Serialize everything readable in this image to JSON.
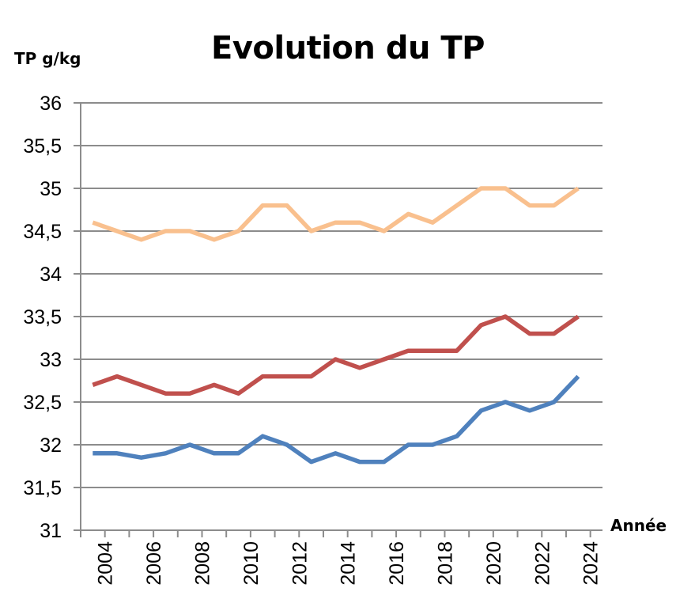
{
  "chart_data": {
    "type": "line",
    "title": "Evolution du TP",
    "ylabel": "TP g/kg",
    "xlabel": "Année",
    "ylim": [
      31,
      36
    ],
    "y_ticks": [
      "31",
      "31,5",
      "32",
      "32,5",
      "33",
      "33,5",
      "34",
      "34,5",
      "35",
      "35,5",
      "36"
    ],
    "x_ticks": [
      "2004",
      "2006",
      "2008",
      "2010",
      "2012",
      "2014",
      "2016",
      "2018",
      "2020",
      "2022",
      "2024"
    ],
    "x": [
      2003,
      2004,
      2005,
      2006,
      2007,
      2008,
      2009,
      2010,
      2011,
      2012,
      2013,
      2014,
      2015,
      2016,
      2017,
      2018,
      2019,
      2020,
      2021,
      2022,
      2023
    ],
    "grid": "horizontal",
    "legend": "none",
    "series": [
      {
        "color": "#F9C08E",
        "values": [
          34.6,
          34.5,
          34.4,
          34.5,
          34.5,
          34.4,
          34.5,
          34.8,
          34.8,
          34.5,
          34.6,
          34.6,
          34.5,
          34.7,
          34.6,
          34.8,
          35.0,
          35.0,
          34.8,
          34.8,
          35.0
        ]
      },
      {
        "color": "#C0504D",
        "values": [
          32.7,
          32.8,
          32.7,
          32.6,
          32.6,
          32.7,
          32.6,
          32.8,
          32.8,
          32.8,
          33.0,
          32.9,
          33.0,
          33.1,
          33.1,
          33.1,
          33.4,
          33.5,
          33.3,
          33.3,
          33.5
        ]
      },
      {
        "color": "#4F81BD",
        "values": [
          31.9,
          31.9,
          31.85,
          31.9,
          32.0,
          31.9,
          31.9,
          32.1,
          32.0,
          31.8,
          31.9,
          31.8,
          31.8,
          32.0,
          32.0,
          32.1,
          32.4,
          32.5,
          32.4,
          32.5,
          32.8
        ]
      }
    ]
  }
}
